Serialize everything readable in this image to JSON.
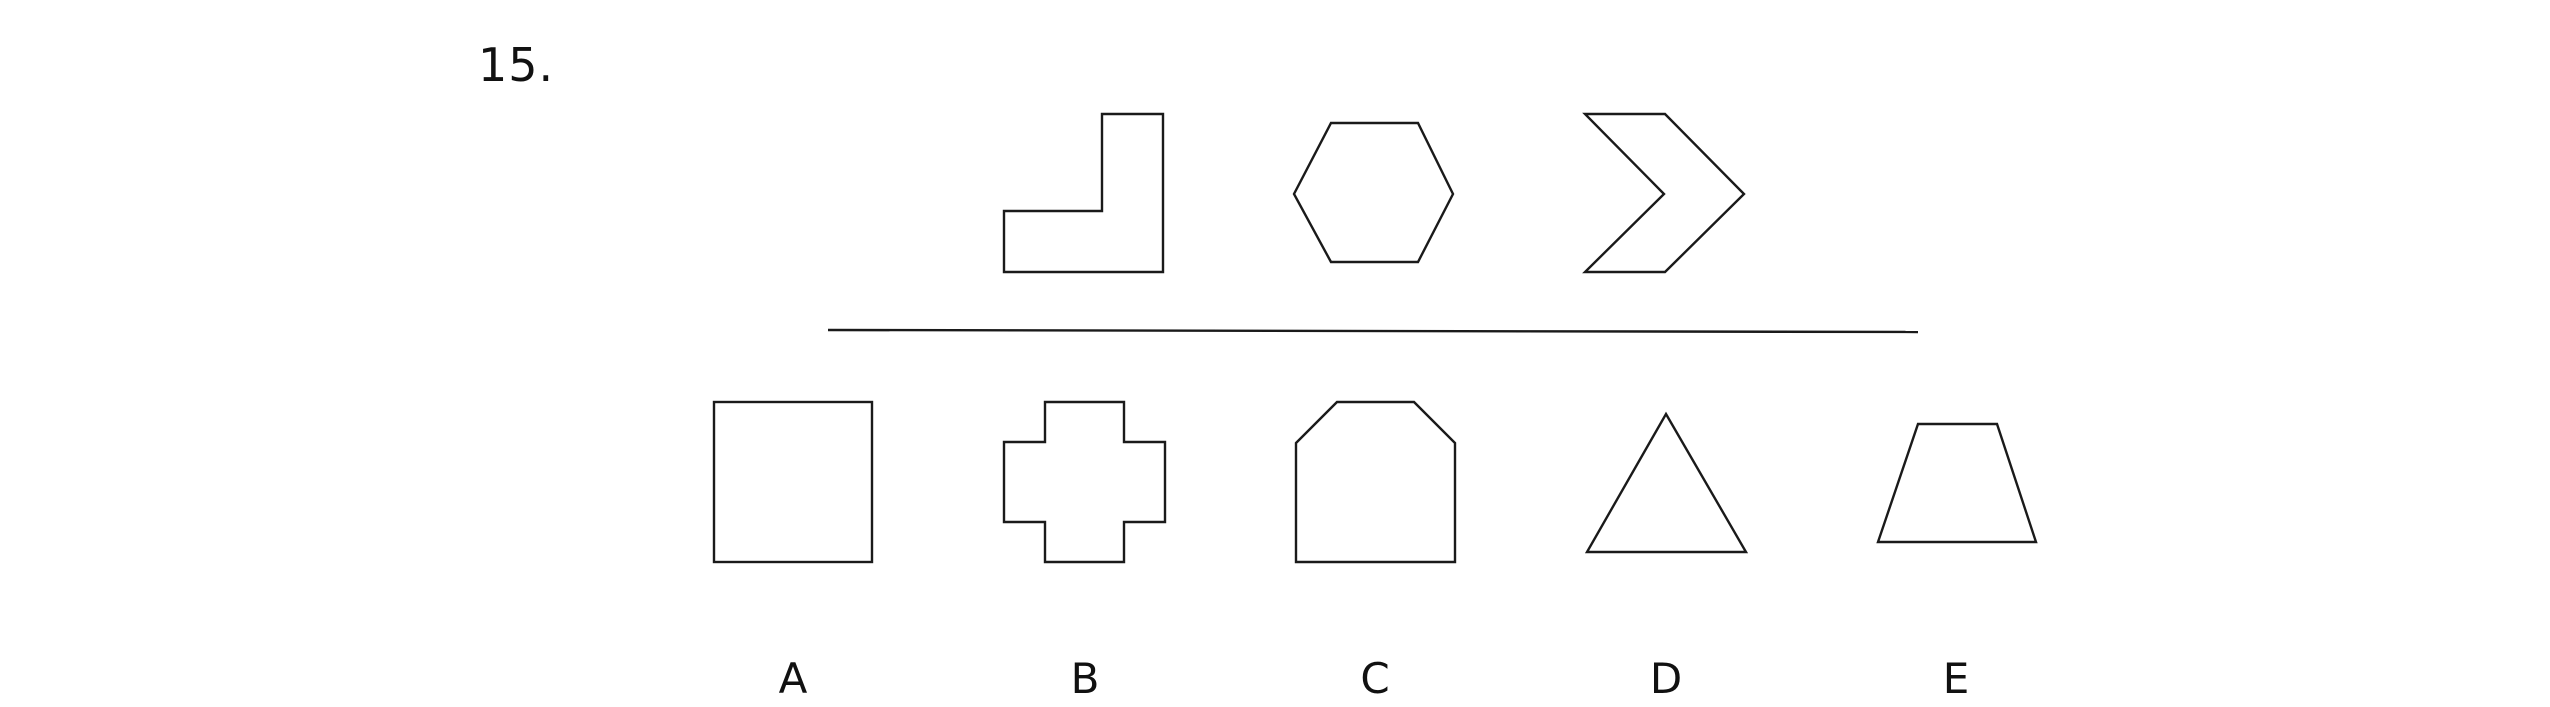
{
  "question": {
    "number": "15."
  },
  "sequence": {
    "shapes": [
      {
        "name": "l-shape"
      },
      {
        "name": "hexagon"
      },
      {
        "name": "chevron"
      }
    ]
  },
  "options": [
    {
      "label": "A",
      "shape": "square"
    },
    {
      "label": "B",
      "shape": "cross"
    },
    {
      "label": "C",
      "shape": "cut-corner-pentagon"
    },
    {
      "label": "D",
      "shape": "triangle"
    },
    {
      "label": "E",
      "shape": "trapezoid"
    }
  ]
}
